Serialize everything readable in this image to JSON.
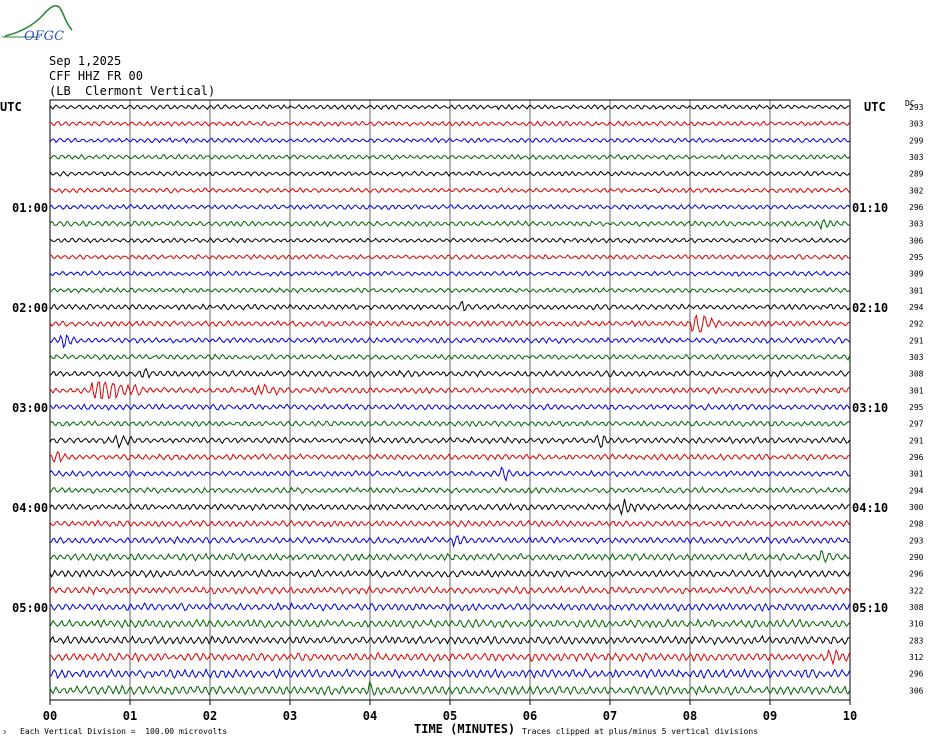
{
  "logo": {
    "text": "OFGC"
  },
  "header": {
    "date": "Sep 1,2025",
    "station": "CFF HHZ FR 00",
    "location": "(LB  Clermont Vertical)"
  },
  "axis_labels": {
    "left_zone": "UTC",
    "right_zone": "UTC",
    "right_col": "DC",
    "x_title": "TIME (MINUTES)"
  },
  "footer": {
    "scale_note": "Each Vertical Division =  100.00 microvolts",
    "clip_note": "Traces clipped at plus/minus 5 vertical divisions",
    "corner_mark": "³"
  },
  "colors": {
    "trace_cycle": [
      "#000000",
      "#e00000",
      "#0000e0",
      "#006600"
    ],
    "grid": "#000000"
  },
  "chart_data": {
    "type": "line",
    "title": "",
    "xlabel": "TIME (MINUTES)",
    "ylabel": "UTC",
    "xlim": [
      0,
      10
    ],
    "x_ticks": [
      "00",
      "01",
      "02",
      "03",
      "04",
      "05",
      "06",
      "07",
      "08",
      "09",
      "10"
    ],
    "rows": 36,
    "minutes_per_row": 10,
    "left_time_labels": [
      {
        "row": 6,
        "label": "01:00"
      },
      {
        "row": 12,
        "label": "02:00"
      },
      {
        "row": 18,
        "label": "03:00"
      },
      {
        "row": 24,
        "label": "04:00"
      },
      {
        "row": 30,
        "label": "05:00"
      }
    ],
    "right_time_labels": [
      {
        "row": 6,
        "label": "01:10"
      },
      {
        "row": 12,
        "label": "02:10"
      },
      {
        "row": 18,
        "label": "03:10"
      },
      {
        "row": 24,
        "label": "04:10"
      },
      {
        "row": 30,
        "label": "05:10"
      }
    ],
    "dc_offsets": [
      293,
      303,
      299,
      303,
      289,
      302,
      296,
      303,
      306,
      295,
      309,
      301,
      294,
      292,
      291,
      303,
      308,
      301,
      295,
      297,
      291,
      296,
      301,
      294,
      300,
      298,
      293,
      290,
      296,
      322,
      308,
      310,
      283,
      312,
      296,
      306
    ],
    "amplitude_by_row": [
      1,
      1,
      1,
      1,
      1,
      1,
      1,
      1.1,
      1,
      1,
      1,
      1,
      1.2,
      1.2,
      1.2,
      1.1,
      1.3,
      1.3,
      1.2,
      1.2,
      1.3,
      1.2,
      1.2,
      1.2,
      1.3,
      1.3,
      1.4,
      1.5,
      1.5,
      1.5,
      1.6,
      1.7,
      1.7,
      1.7,
      1.8,
      1.9
    ],
    "events": [
      {
        "row": 7,
        "minute": 9.7,
        "amp": 2.5,
        "dur": 0.5
      },
      {
        "row": 12,
        "minute": 5.2,
        "amp": 2.5,
        "dur": 0.4
      },
      {
        "row": 13,
        "minute": 8.1,
        "amp": 5.5,
        "dur": 0.5
      },
      {
        "row": 14,
        "minute": 0.2,
        "amp": 3,
        "dur": 0.4
      },
      {
        "row": 16,
        "minute": 1.2,
        "amp": 2.5,
        "dur": 0.3
      },
      {
        "row": 17,
        "minute": 0.6,
        "amp": 6,
        "dur": 1.2
      },
      {
        "row": 17,
        "minute": 2.6,
        "amp": 2.5,
        "dur": 1.3
      },
      {
        "row": 20,
        "minute": 0.9,
        "amp": 2.5,
        "dur": 0.6
      },
      {
        "row": 20,
        "minute": 6.9,
        "amp": 2.5,
        "dur": 0.3
      },
      {
        "row": 21,
        "minute": 0.1,
        "amp": 3,
        "dur": 0.3
      },
      {
        "row": 22,
        "minute": 5.7,
        "amp": 2.5,
        "dur": 0.5
      },
      {
        "row": 24,
        "minute": 7.2,
        "amp": 3,
        "dur": 0.6
      },
      {
        "row": 26,
        "minute": 5.1,
        "amp": 2.5,
        "dur": 0.5
      },
      {
        "row": 27,
        "minute": 9.7,
        "amp": 2.5,
        "dur": 0.4
      },
      {
        "row": 33,
        "minute": 9.8,
        "amp": 2.5,
        "dur": 0.3
      },
      {
        "row": 35,
        "minute": 4.0,
        "amp": 2.5,
        "dur": 0.5
      }
    ]
  }
}
